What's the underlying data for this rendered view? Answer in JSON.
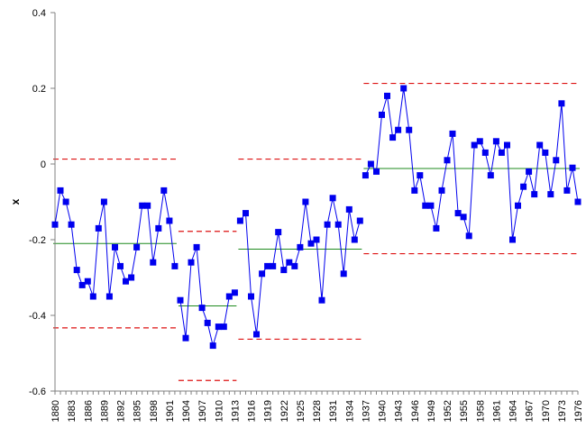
{
  "chart_data": {
    "type": "line",
    "title": "",
    "xlabel": "",
    "ylabel": "x",
    "ylim": [
      -0.6,
      0.4
    ],
    "yticks": [
      -0.6,
      -0.4,
      -0.2,
      0,
      0.2,
      0.4
    ],
    "ytick_labels": [
      "-0.6",
      "-0.4",
      "-0.2",
      "0",
      "0.2",
      "0.4"
    ],
    "xlim": [
      1880,
      1976
    ],
    "xtick_step": 3,
    "grid": false,
    "legend": "none",
    "colors": {
      "series": "#0000ee",
      "center_line": "#1e8a1e",
      "limit_line": "#dd1111",
      "axis": "#808080"
    },
    "series": [
      {
        "x": [
          1880,
          1881,
          1882,
          1883,
          1884,
          1885,
          1886,
          1887,
          1888,
          1889,
          1890,
          1891,
          1892,
          1893,
          1894,
          1895,
          1896,
          1897,
          1898,
          1899,
          1900,
          1901,
          1902,
          1903,
          1904,
          1905,
          1906,
          1907,
          1908,
          1909,
          1910,
          1911,
          1912,
          1913,
          1914,
          1915,
          1916,
          1917,
          1918,
          1919,
          1920,
          1921,
          1922,
          1923,
          1924,
          1925,
          1926,
          1927,
          1928,
          1929,
          1930,
          1931,
          1932,
          1933,
          1934,
          1935,
          1936,
          1937,
          1938,
          1939,
          1940,
          1941,
          1942,
          1943,
          1944,
          1945,
          1946,
          1947,
          1948,
          1949,
          1950,
          1951,
          1952,
          1953,
          1954,
          1955,
          1956,
          1957,
          1958,
          1959,
          1960,
          1961,
          1962,
          1963,
          1964,
          1965,
          1966,
          1967,
          1968,
          1969,
          1970,
          1971,
          1972,
          1973,
          1974,
          1975,
          1976
        ],
        "values": [
          -0.16,
          -0.07,
          -0.1,
          -0.16,
          -0.28,
          -0.32,
          -0.31,
          -0.35,
          -0.17,
          -0.1,
          -0.35,
          -0.22,
          -0.27,
          -0.31,
          -0.3,
          -0.22,
          -0.11,
          -0.11,
          -0.26,
          -0.17,
          -0.07,
          -0.15,
          -0.27,
          -0.36,
          -0.46,
          -0.26,
          -0.22,
          -0.38,
          -0.42,
          -0.48,
          -0.43,
          -0.43,
          -0.35,
          -0.34,
          -0.15,
          -0.13,
          -0.35,
          -0.45,
          -0.29,
          -0.27,
          -0.27,
          -0.18,
          -0.28,
          -0.26,
          -0.27,
          -0.22,
          -0.1,
          -0.21,
          -0.2,
          -0.36,
          -0.16,
          -0.09,
          -0.16,
          -0.29,
          -0.12,
          -0.2,
          -0.15,
          -0.03,
          0.0,
          -0.02,
          0.13,
          0.18,
          0.07,
          0.09,
          0.2,
          0.09,
          -0.07,
          -0.03,
          -0.11,
          -0.11,
          -0.17,
          -0.07,
          0.01,
          0.08,
          -0.13,
          -0.14,
          -0.19,
          0.05,
          0.06,
          0.03,
          -0.03,
          0.06,
          0.03,
          0.05,
          -0.2,
          -0.11,
          -0.06,
          -0.02,
          -0.08,
          0.05,
          0.03,
          -0.08,
          0.01,
          0.16,
          -0.07,
          -0.01,
          -0.1
        ]
      }
    ],
    "segments": [
      {
        "x_start": 1880,
        "x_end": 1902,
        "center": -0.21,
        "ucl": 0.013,
        "lcl": -0.433
      },
      {
        "x_start": 1903,
        "x_end": 1913,
        "center": -0.375,
        "ucl": -0.178,
        "lcl": -0.572
      },
      {
        "x_start": 1914,
        "x_end": 1936,
        "center": -0.225,
        "ucl": 0.013,
        "lcl": -0.463
      },
      {
        "x_start": 1937,
        "x_end": 1976,
        "center": -0.012,
        "ucl": 0.213,
        "lcl": -0.237
      }
    ]
  }
}
